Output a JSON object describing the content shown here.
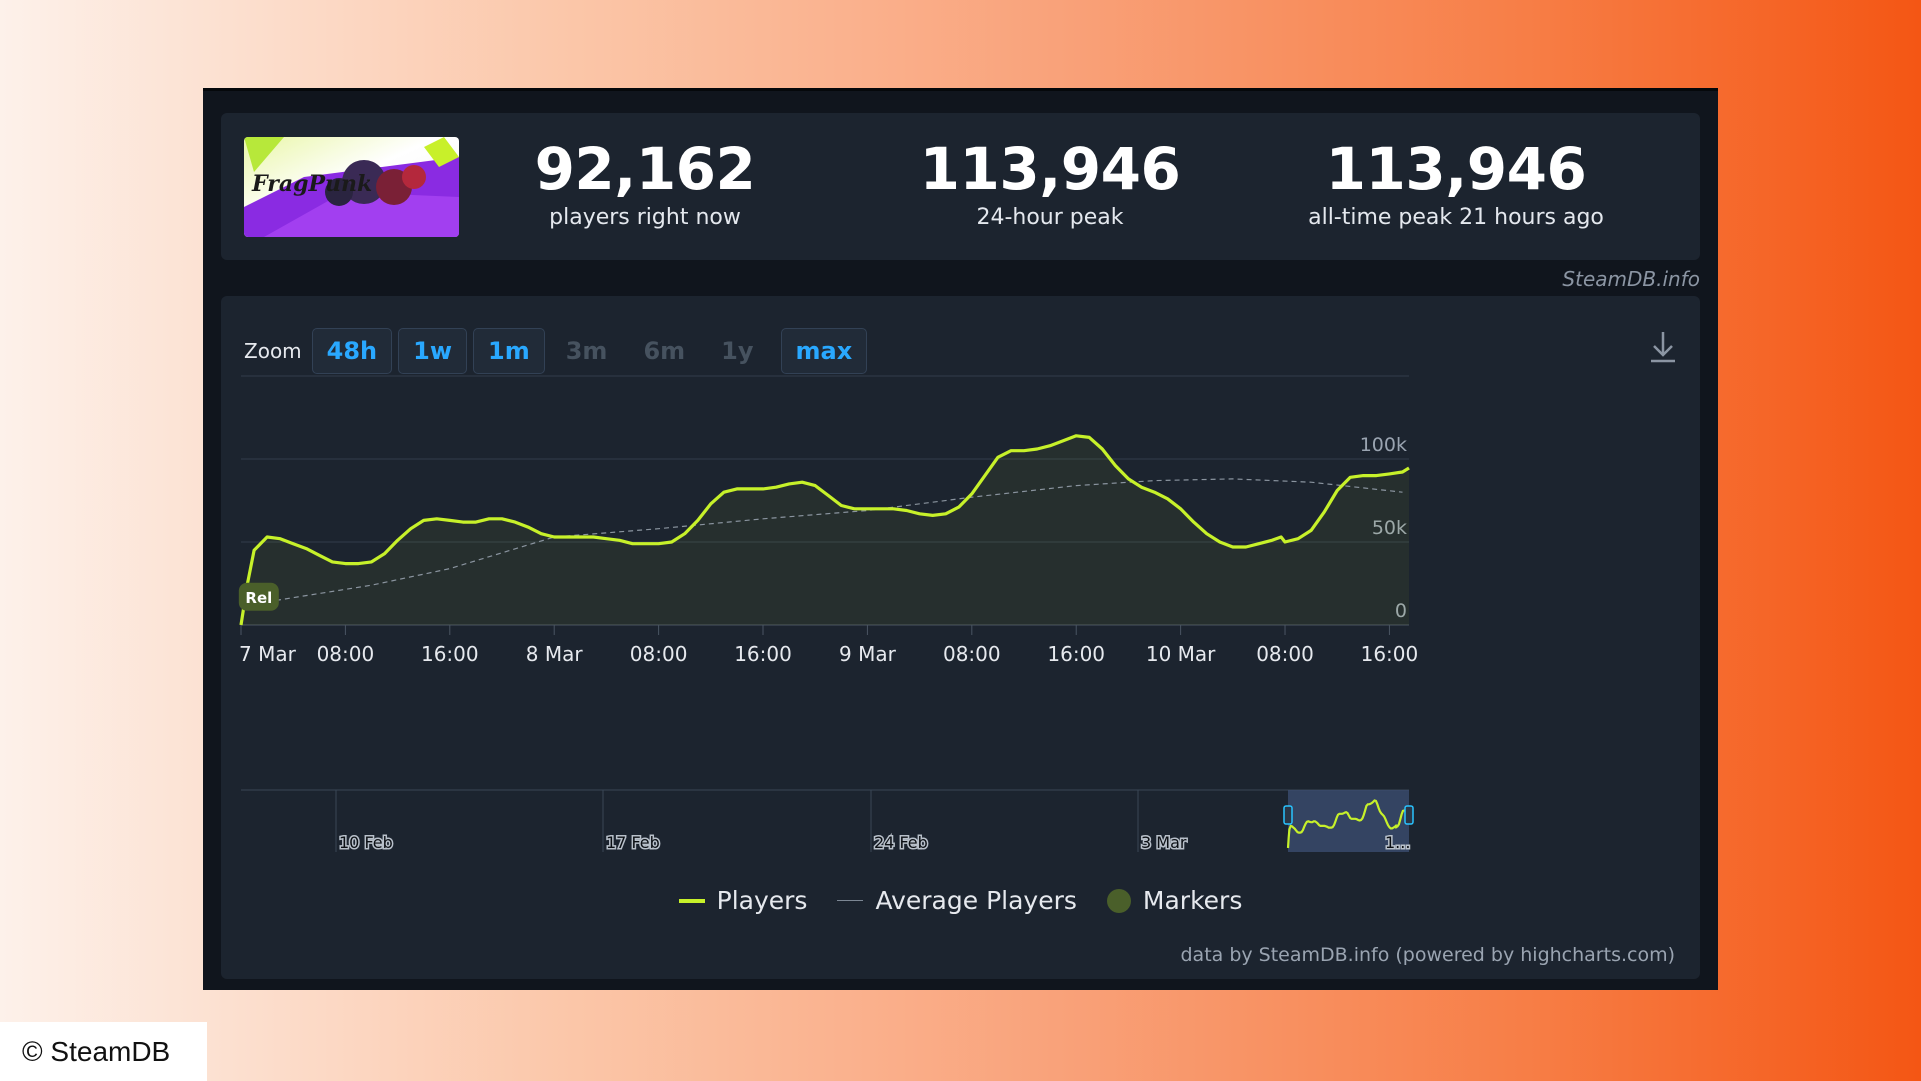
{
  "stats": [
    {
      "value": "92,162",
      "label": "players right now"
    },
    {
      "value": "113,946",
      "label": "24-hour peak"
    },
    {
      "value": "113,946",
      "label": "all-time peak 21 hours ago"
    }
  ],
  "thumbnail": {
    "logo_text": "FragPunk",
    "icon": "game-cover-art"
  },
  "credit_top": "SteamDB.info",
  "zoom": {
    "label": "Zoom",
    "buttons": [
      {
        "label": "48h",
        "enabled": true
      },
      {
        "label": "1w",
        "enabled": true
      },
      {
        "label": "1m",
        "enabled": true
      },
      {
        "label": "3m",
        "enabled": false
      },
      {
        "label": "6m",
        "enabled": false
      },
      {
        "label": "1y",
        "enabled": false
      },
      {
        "label": "max",
        "enabled": true
      }
    ]
  },
  "download_icon": "download-icon",
  "chart_data": {
    "type": "line",
    "title": "",
    "xlabel": "",
    "ylabel": "",
    "ylim": [
      0,
      150000
    ],
    "y_ticks": [
      {
        "value": 0,
        "label": "0"
      },
      {
        "value": 50000,
        "label": "50k"
      },
      {
        "value": 100000,
        "label": "100k"
      }
    ],
    "x_ticks": [
      "7 Mar",
      "08:00",
      "16:00",
      "8 Mar",
      "08:00",
      "16:00",
      "9 Mar",
      "08:00",
      "16:00",
      "10 Mar",
      "08:00",
      "16:00"
    ],
    "grid": true,
    "release_marker": "Rel",
    "hours_span": [
      0,
      89.5
    ],
    "series": [
      {
        "name": "Players",
        "color": "#c7f12a",
        "points": [
          [
            0,
            0
          ],
          [
            0.5,
            25000
          ],
          [
            1,
            45000
          ],
          [
            2,
            53000
          ],
          [
            3,
            52000
          ],
          [
            4,
            49000
          ],
          [
            5,
            46000
          ],
          [
            6,
            42000
          ],
          [
            7,
            38000
          ],
          [
            8,
            37000
          ],
          [
            9,
            37000
          ],
          [
            10,
            38000
          ],
          [
            11,
            43000
          ],
          [
            12,
            51000
          ],
          [
            13,
            58000
          ],
          [
            14,
            63000
          ],
          [
            15,
            64000
          ],
          [
            16,
            63000
          ],
          [
            17,
            62000
          ],
          [
            18,
            62000
          ],
          [
            19,
            64000
          ],
          [
            20,
            64000
          ],
          [
            21,
            62000
          ],
          [
            22,
            59000
          ],
          [
            23,
            55000
          ],
          [
            24,
            53000
          ],
          [
            25,
            53000
          ],
          [
            26,
            53000
          ],
          [
            27,
            53000
          ],
          [
            28,
            52000
          ],
          [
            29,
            51000
          ],
          [
            30,
            49000
          ],
          [
            31,
            49000
          ],
          [
            32,
            49000
          ],
          [
            33,
            50000
          ],
          [
            34,
            55000
          ],
          [
            35,
            63000
          ],
          [
            36,
            73000
          ],
          [
            37,
            80000
          ],
          [
            38,
            82000
          ],
          [
            39,
            82000
          ],
          [
            40,
            82000
          ],
          [
            41,
            83000
          ],
          [
            42,
            85000
          ],
          [
            43,
            86000
          ],
          [
            44,
            84000
          ],
          [
            45,
            78000
          ],
          [
            46,
            72000
          ],
          [
            47,
            70000
          ],
          [
            48,
            70000
          ],
          [
            49,
            70000
          ],
          [
            50,
            70000
          ],
          [
            51,
            69000
          ],
          [
            52,
            67000
          ],
          [
            53,
            66000
          ],
          [
            54,
            67000
          ],
          [
            55,
            71000
          ],
          [
            56,
            79000
          ],
          [
            57,
            90000
          ],
          [
            58,
            101000
          ],
          [
            59,
            105000
          ],
          [
            60,
            105000
          ],
          [
            61,
            106000
          ],
          [
            62,
            108000
          ],
          [
            63,
            111000
          ],
          [
            64,
            114000
          ],
          [
            65,
            113000
          ],
          [
            66,
            106000
          ],
          [
            67,
            96000
          ],
          [
            68,
            88000
          ],
          [
            69,
            83000
          ],
          [
            70,
            80000
          ],
          [
            71,
            76000
          ],
          [
            72,
            70000
          ],
          [
            73,
            62000
          ],
          [
            74,
            55000
          ],
          [
            75,
            50000
          ],
          [
            76,
            47000
          ],
          [
            77,
            47000
          ],
          [
            78,
            49000
          ],
          [
            79,
            51000
          ],
          [
            79.7,
            53000
          ],
          [
            80,
            50000
          ],
          [
            81,
            52000
          ],
          [
            82,
            57000
          ],
          [
            83,
            68000
          ],
          [
            84,
            81000
          ],
          [
            85,
            89000
          ],
          [
            86,
            90000
          ],
          [
            87,
            90000
          ],
          [
            88,
            91000
          ],
          [
            89,
            92162
          ]
        ]
      },
      {
        "name": "Average Players",
        "color": "#8a949f",
        "points": [
          [
            2,
            14000
          ],
          [
            10,
            24000
          ],
          [
            16,
            34000
          ],
          [
            24,
            53000
          ],
          [
            32,
            58000
          ],
          [
            40,
            64000
          ],
          [
            48,
            69000
          ],
          [
            56,
            77000
          ],
          [
            64,
            84000
          ],
          [
            70,
            87000
          ],
          [
            76,
            88000
          ],
          [
            82,
            86000
          ],
          [
            89,
            80000
          ]
        ]
      }
    ],
    "navigator": {
      "x_labels": [
        "10 Feb",
        "17 Feb",
        "24 Feb",
        "3 Mar",
        "1..."
      ]
    },
    "legend": [
      "Players",
      "Average Players",
      "Markers"
    ]
  },
  "powered_by": "data by SteamDB.info (powered by highcharts.com)",
  "copyright": "© SteamDB"
}
